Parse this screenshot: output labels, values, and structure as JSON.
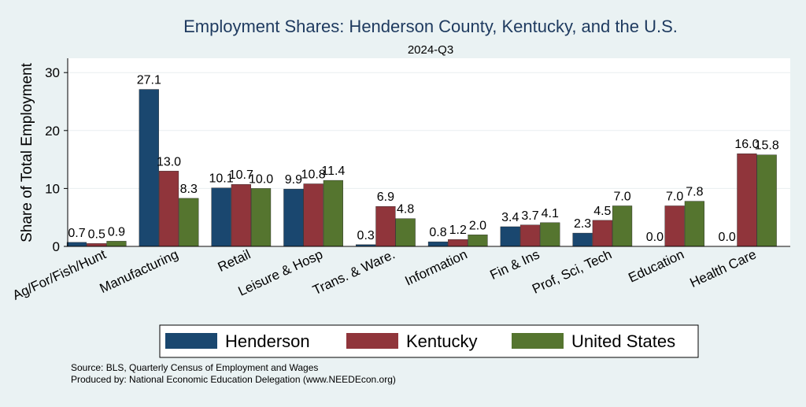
{
  "chart_data": {
    "type": "bar",
    "title": "Employment Shares: Henderson County, Kentucky, and the U.S.",
    "subtitle": "2024-Q3",
    "xlabel": "",
    "ylabel": "Share of Total Employment",
    "ylim": [
      0,
      32
    ],
    "yticks": [
      0,
      10,
      20,
      30
    ],
    "grid": true,
    "legend_position": "bottom",
    "categories": [
      "Ag/For/Fish/Hunt",
      "Manufacturing",
      "Retail",
      "Leisure & Hosp",
      "Trans. & Ware.",
      "Information",
      "Fin & Ins",
      "Prof, Sci, Tech",
      "Education",
      "Health Care"
    ],
    "series": [
      {
        "name": "Henderson",
        "color": "#1a476f",
        "values": [
          0.7,
          27.1,
          10.1,
          9.9,
          0.3,
          0.8,
          3.4,
          2.3,
          0.0,
          0.0
        ]
      },
      {
        "name": "Kentucky",
        "color": "#90353b",
        "values": [
          0.5,
          13.0,
          10.7,
          10.8,
          6.9,
          1.2,
          3.7,
          4.5,
          7.0,
          16.0
        ]
      },
      {
        "name": "United States",
        "color": "#55752f",
        "values": [
          0.9,
          8.3,
          10.0,
          11.4,
          4.8,
          2.0,
          4.1,
          7.0,
          7.8,
          15.8
        ]
      }
    ],
    "notes": [
      "Source: BLS, Quarterly Census of Employment and Wages",
      "Produced by: National Economic Education Delegation (www.NEEDEcon.org)"
    ]
  }
}
